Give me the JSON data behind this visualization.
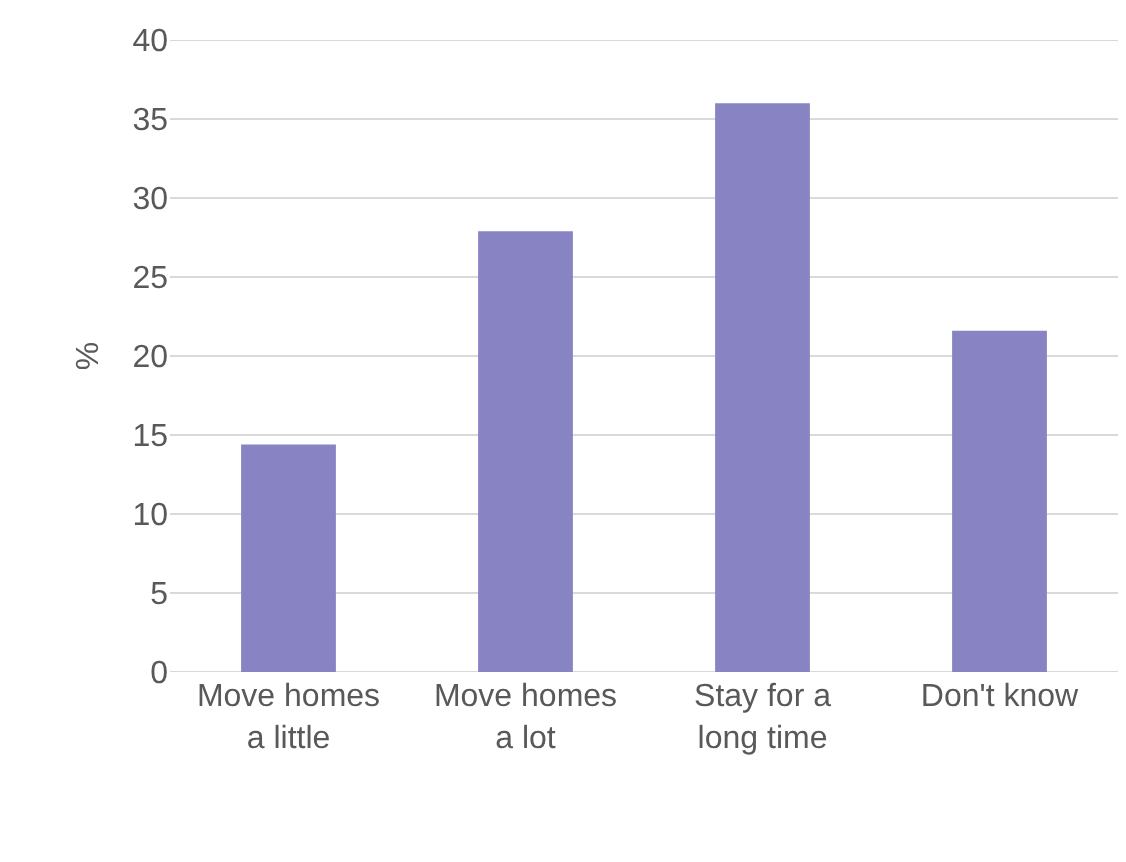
{
  "chart_data": {
    "type": "bar",
    "ylabel": "%",
    "categories": [
      "Move homes a little",
      "Move homes a lot",
      "Stay for a long time",
      "Don't know"
    ],
    "values": [
      14.4,
      27.9,
      36.0,
      21.6
    ],
    "color": "#8884c4",
    "ylim": [
      0,
      40
    ],
    "yticks": [
      0,
      5,
      10,
      15,
      20,
      25,
      30,
      35,
      40
    ],
    "grid": "y"
  }
}
